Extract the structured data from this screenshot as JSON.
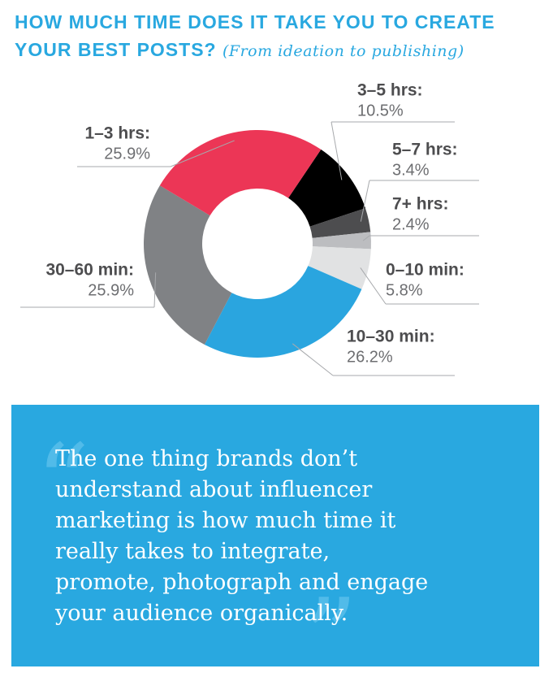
{
  "chart_data": {
    "type": "donut",
    "title": "HOW MUCH TIME DOES IT TAKE YOU TO CREATE YOUR BEST POSTS?",
    "subtitle": "(From ideation to publishing)",
    "categories": [
      "3–5 hrs:",
      "5–7 hrs:",
      "7+ hrs:",
      "0–10 min:",
      "10–30 min:",
      "30–60 min:",
      "1–3 hrs:"
    ],
    "values": [
      10.5,
      3.4,
      2.4,
      5.8,
      26.2,
      25.9,
      25.9
    ],
    "value_labels": [
      "10.5%",
      "3.4%",
      "2.4%",
      "5.8%",
      "26.2%",
      "25.9%",
      "25.9%"
    ],
    "colors": [
      "#000000",
      "#4d4d4f",
      "#bcbdc0",
      "#e1e2e3",
      "#2aa5df",
      "#808285",
      "#ec3656"
    ]
  },
  "quote": "The one thing brands don’t understand about influencer marketing is how much time it really takes to integrate, promote, photograph and engage your audience organically."
}
